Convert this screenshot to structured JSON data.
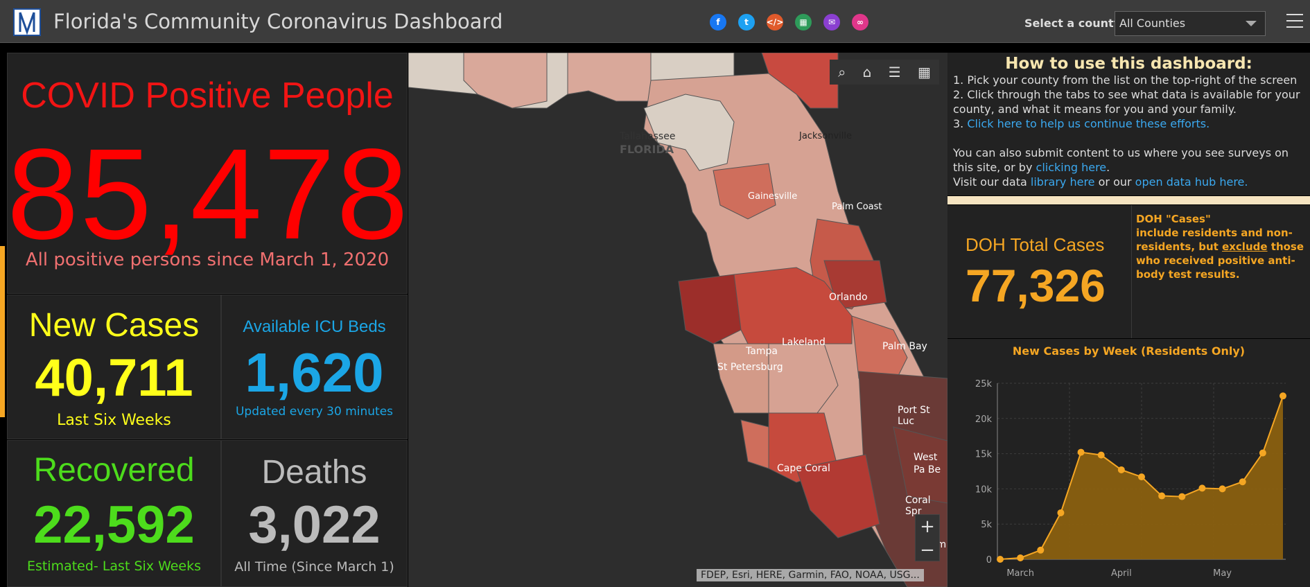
{
  "header": {
    "title": "Florida's Community Coronavirus Dashboard",
    "county_label": "Select a county",
    "county_value": "All Counties",
    "share_icons": [
      "facebook-icon",
      "twitter-icon",
      "embed-icon",
      "qr-icon",
      "email-icon",
      "link-icon"
    ],
    "share_colors": [
      "#1877f2",
      "#1da1f2",
      "#e05a2b",
      "#2e9b5a",
      "#8a3fd1",
      "#e0368a"
    ]
  },
  "positive": {
    "title": "COVID Positive People",
    "value": "85,478",
    "subtitle": "All positive persons since March 1, 2020"
  },
  "new_cases": {
    "label": "New Cases",
    "value": "40,711",
    "sub": "Last Six Weeks"
  },
  "icu": {
    "label": "Available ICU Beds",
    "value": "1,620",
    "sub": "Updated every 30 minutes"
  },
  "recovered": {
    "label": "Recovered",
    "value": "22,592",
    "sub": "Estimated- Last Six Weeks"
  },
  "deaths": {
    "label": "Deaths",
    "value": "3,022",
    "sub": "All Time (Since March 1)"
  },
  "map": {
    "state_label": "FLORIDA",
    "cities": [
      "Tallahassee",
      "Jacksonville",
      "Gainesville",
      "Palm Coast",
      "Orlando",
      "Lakeland",
      "Tampa",
      "St Petersburg",
      "Palm Bay",
      "Port St Luc",
      "Cape Coral",
      "West Pa Be",
      "Coral Spr",
      "Miam"
    ],
    "attribution": "FDEP, Esri, HERE, Garmin, FAO, NOAA, USG..."
  },
  "howto": {
    "title": "How to use this dashboard:",
    "step1": "1. Pick your county from the list on the top-right of the screen",
    "step2": "2. Click through the tabs to see what data is available for your county, and what it means for you and your family.",
    "step3_prefix": "3. ",
    "step3_link": "Click here to help us continue these efforts.",
    "line4_text": "You can also submit content to us where you see surveys on this site, or by ",
    "line4_link": "clicking here",
    "line4_end": ".",
    "line5_text": "Visit our data ",
    "line5_link1": "library here",
    "line5_mid": " or our ",
    "line5_link2": "open data hub here."
  },
  "doh": {
    "label": "DOH Total Cases",
    "value": "77,326",
    "note_title": "DOH \"Cases\"",
    "note_a": "include residents and non-residents, but ",
    "note_u": "exclude",
    "note_b": " those who received positive anti-body test results."
  },
  "chart_data": {
    "type": "area",
    "title": "New Cases by Week (Residents Only)",
    "y_ticks": [
      "0",
      "5k",
      "10k",
      "15k",
      "20k",
      "25k"
    ],
    "ylim": [
      0,
      25000
    ],
    "x_tick_labels": [
      "March",
      "April",
      "May"
    ],
    "values": [
      0,
      200,
      1300,
      6600,
      15200,
      14800,
      12700,
      11700,
      9000,
      8900,
      10100,
      10000,
      11000,
      15100,
      23200
    ],
    "color": "#f5a623",
    "fill": "#8a6010",
    "grid": true
  }
}
